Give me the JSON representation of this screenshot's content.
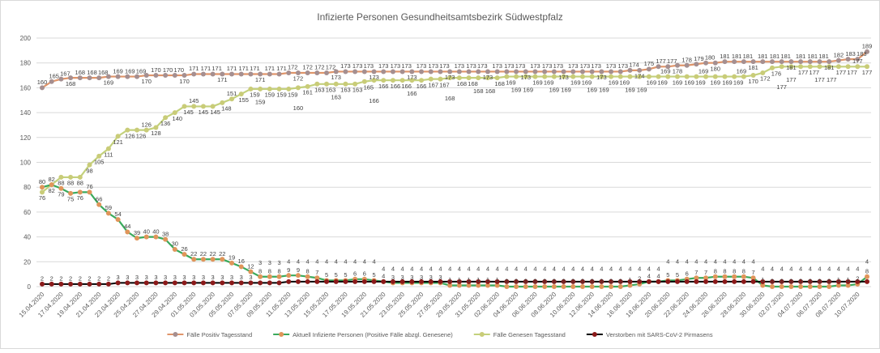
{
  "chart_data": {
    "type": "line",
    "title": "Infizierte Personen Gesundheitsamtsbezirk Südwestpfalz",
    "xlabel": "",
    "ylabel": "",
    "ylim": [
      0,
      200
    ],
    "y_ticks": [
      "0",
      "20",
      "40",
      "60",
      "80",
      "100",
      "120",
      "140",
      "160",
      "180",
      "200"
    ],
    "grid": true,
    "legend_position": "bottom",
    "x_tick_labels": [
      "15.04.2020",
      "17.04.2020",
      "19.04.2020",
      "21.04.2020",
      "23.04.2020",
      "25.04.2020",
      "27.04.2020",
      "29.04.2020",
      "01.05.2020",
      "03.05.2020",
      "05.05.2020",
      "07.05.2020",
      "09.05.2020",
      "11.05.2020",
      "13.05.2020",
      "15.05.2020",
      "17.05.2020",
      "19.05.2020",
      "21.05.2020",
      "23.05.2020",
      "25.05.2020",
      "27.05.2020",
      "29.05.2020",
      "31.05.2020",
      "02.06.2020",
      "04.06.2020",
      "06.06.2020",
      "08.06.2020",
      "10.06.2020",
      "12.06.2020",
      "14.06.2020",
      "16.06.2020",
      "18.06.2020",
      "20.06.2020",
      "22.06.2020",
      "24.06.2020",
      "26.06.2020",
      "28.06.2020",
      "30.06.2020",
      "02.07.2020",
      "04.07.2020",
      "06.07.2020",
      "08.07.2020",
      "10.07.2020"
    ],
    "x_tick_every_n_days": 2,
    "series": [
      {
        "name": "Fälle Positiv Tagesstand",
        "line_color": "#e0956a",
        "marker_color": "#a58f90",
        "values": [
          160,
          165,
          167,
          168,
          168,
          168,
          168,
          169,
          169,
          169,
          169,
          170,
          170,
          170,
          170,
          170,
          171,
          171,
          171,
          171,
          171,
          171,
          171,
          171,
          171,
          171,
          172,
          172,
          172,
          172,
          172,
          173,
          173,
          173,
          173,
          173,
          173,
          173,
          173,
          173,
          173,
          173,
          173,
          173,
          173,
          173,
          173,
          173,
          173,
          173,
          173,
          173,
          173,
          173,
          173,
          173,
          173,
          173,
          173,
          173,
          173,
          173,
          174,
          174,
          175,
          177,
          177,
          178,
          178,
          179,
          180,
          180,
          181,
          181,
          181,
          181,
          181,
          181,
          181,
          181,
          181,
          181,
          181,
          181,
          182,
          183,
          183,
          189
        ]
      },
      {
        "name": "Aktuell Infizierte Personen (Positive Fälle abzgl. Genesene)",
        "line_color": "#3aaa5c",
        "marker_color": "#e0955a",
        "values": [
          80,
          82,
          79,
          75,
          76,
          76,
          66,
          59,
          54,
          44,
          39,
          40,
          40,
          38,
          30,
          26,
          22,
          22,
          22,
          22,
          19,
          16,
          12,
          8,
          8,
          8,
          9,
          9,
          8,
          7,
          5,
          5,
          5,
          6,
          6,
          5,
          4,
          3,
          3,
          3,
          3,
          3,
          3,
          1,
          1,
          1,
          1,
          1,
          1,
          0,
          0,
          0,
          0,
          0,
          0,
          0,
          0,
          0,
          0,
          0,
          0,
          0,
          1,
          2,
          4,
          4,
          5,
          5,
          6,
          7,
          7,
          8,
          8,
          8,
          8,
          7,
          1,
          0,
          0,
          0,
          0,
          0,
          0,
          0,
          1,
          1,
          2,
          8
        ]
      },
      {
        "name": "Fälle Genesen Tagesstand",
        "line_color": "#c3d17c",
        "marker_color": "#c9cc78",
        "values": [
          76,
          82,
          88,
          88,
          88,
          98,
          105,
          111,
          121,
          126,
          126,
          126,
          128,
          136,
          140,
          145,
          145,
          145,
          145,
          148,
          151,
          155,
          159,
          159,
          159,
          159,
          159,
          160,
          161,
          163,
          163,
          163,
          163,
          163,
          165,
          166,
          166,
          166,
          166,
          166,
          166,
          167,
          167,
          168,
          168,
          168,
          168,
          168,
          168,
          169,
          169,
          169,
          169,
          169,
          169,
          169,
          169,
          169,
          169,
          169,
          169,
          169,
          169,
          169,
          169,
          169,
          169,
          169,
          169,
          169,
          169,
          169,
          169,
          169,
          169,
          170,
          172,
          176,
          177,
          177,
          177,
          177,
          177,
          177,
          177,
          177,
          177,
          177
        ]
      },
      {
        "name": "Verstorben mit SARS-CoV-2 Pirmasens",
        "line_color": "#000000",
        "marker_color": "#8b1a1a",
        "values": [
          2,
          2,
          2,
          2,
          2,
          2,
          2,
          2,
          3,
          3,
          3,
          3,
          3,
          3,
          3,
          3,
          3,
          3,
          3,
          3,
          3,
          3,
          3,
          3,
          3,
          3,
          4,
          4,
          4,
          4,
          4,
          4,
          4,
          4,
          4,
          4,
          4,
          4,
          4,
          4,
          4,
          4,
          4,
          4,
          4,
          4,
          4,
          4,
          4,
          4,
          4,
          4,
          4,
          4,
          4,
          4,
          4,
          4,
          4,
          4,
          4,
          4,
          4,
          4,
          4,
          4,
          4,
          4,
          4,
          4,
          4,
          4,
          4,
          4,
          4,
          4,
          4,
          4,
          4,
          4,
          4,
          4,
          4,
          4,
          4,
          4,
          4,
          4
        ]
      }
    ]
  }
}
